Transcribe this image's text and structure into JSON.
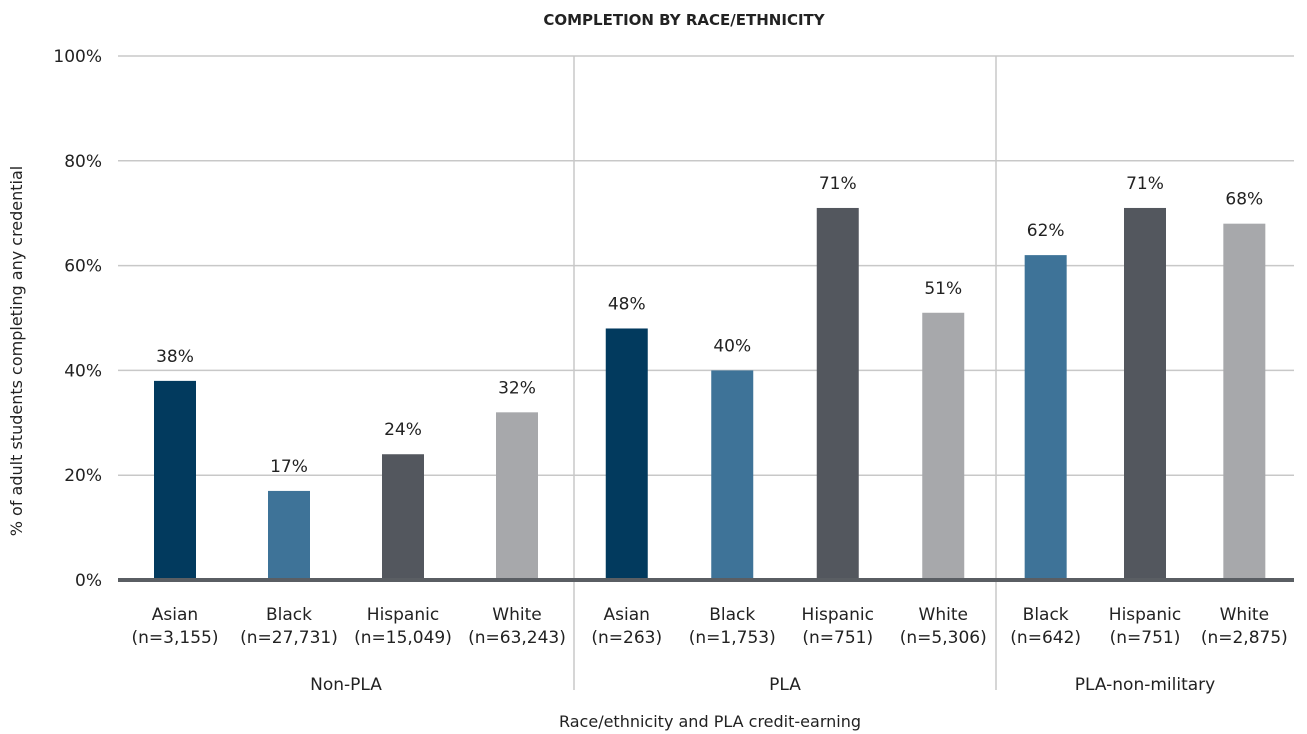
{
  "chart_data": {
    "type": "bar",
    "title": "COMPLETION BY RACE/ETHNICITY",
    "xlabel": "Race/ethnicity and PLA credit-earning",
    "ylabel": "% of adult students completing any credential",
    "ylim": [
      0,
      100
    ],
    "yticks": [
      0,
      20,
      40,
      60,
      80,
      100
    ],
    "ytick_labels": [
      "0%",
      "20%",
      "40%",
      "60%",
      "80%",
      "100%"
    ],
    "grid": true,
    "legend": "none",
    "groups": [
      {
        "name": "Non-PLA",
        "bars": [
          {
            "label": "Asian",
            "n": "(n=3,155)",
            "value": 38,
            "value_label": "38%",
            "color": "#023a5e"
          },
          {
            "label": "Black",
            "n": "(n=27,731)",
            "value": 17,
            "value_label": "17%",
            "color": "#3e7398"
          },
          {
            "label": "Hispanic",
            "n": "(n=15,049)",
            "value": 24,
            "value_label": "24%",
            "color": "#53575e"
          },
          {
            "label": "White",
            "n": "(n=63,243)",
            "value": 32,
            "value_label": "32%",
            "color": "#a7a8ab"
          }
        ]
      },
      {
        "name": "PLA",
        "bars": [
          {
            "label": "Asian",
            "n": "(n=263)",
            "value": 48,
            "value_label": "48%",
            "color": "#023a5e"
          },
          {
            "label": "Black",
            "n": "(n=1,753)",
            "value": 40,
            "value_label": "40%",
            "color": "#3e7398"
          },
          {
            "label": "Hispanic",
            "n": "(n=751)",
            "value": 71,
            "value_label": "71%",
            "color": "#53575e"
          },
          {
            "label": "White",
            "n": "(n=5,306)",
            "value": 51,
            "value_label": "51%",
            "color": "#a7a8ab"
          }
        ]
      },
      {
        "name": "PLA-non-military",
        "bars": [
          {
            "label": "Black",
            "n": "(n=642)",
            "value": 62,
            "value_label": "62%",
            "color": "#3e7398"
          },
          {
            "label": "Hispanic",
            "n": "(n=751)",
            "value": 71,
            "value_label": "71%",
            "color": "#53575e"
          },
          {
            "label": "White",
            "n": "(n=2,875)",
            "value": 68,
            "value_label": "68%",
            "color": "#a7a8ab"
          }
        ]
      }
    ],
    "colors": {
      "grid": "#c8c8c8",
      "baseline": "#5a5e63",
      "separator": "#c8c8c8"
    }
  }
}
